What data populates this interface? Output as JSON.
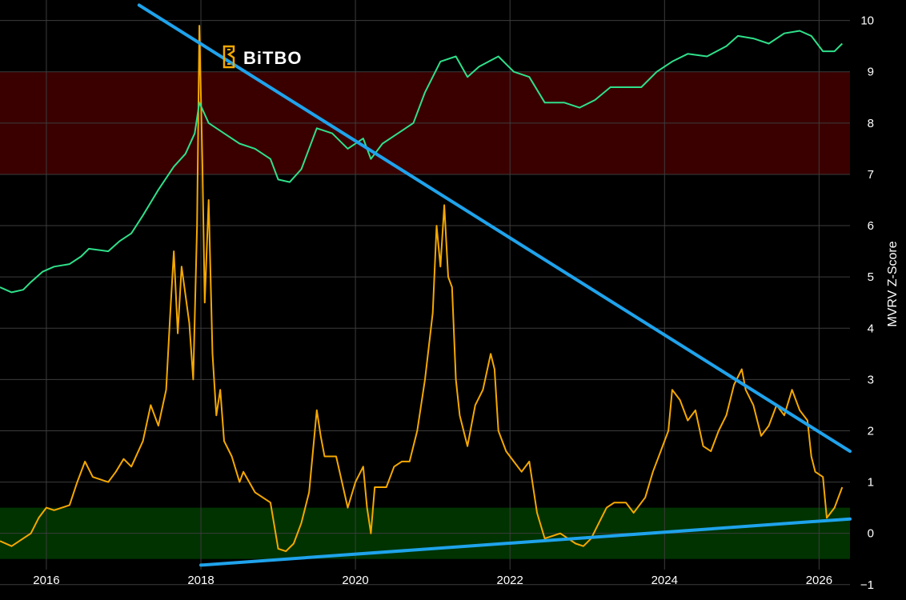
{
  "logo": {
    "text": "BiTBO"
  },
  "chart_data": {
    "type": "line",
    "title": "",
    "xlabel": "",
    "ylabel": "MVRV Z-Score",
    "xlim": [
      2015.4,
      2026.4
    ],
    "ylim": [
      -1.3,
      10.4
    ],
    "x_ticks": [
      2016,
      2018,
      2020,
      2022,
      2024,
      2026
    ],
    "x_tick_labels": [
      "2016",
      "2018",
      "2020",
      "2022",
      "2024",
      "2026"
    ],
    "y_ticks": [
      -1,
      0,
      1,
      2,
      3,
      4,
      5,
      6,
      7,
      8,
      9,
      10
    ],
    "y_tick_labels": [
      "−1",
      "0",
      "1",
      "2",
      "3",
      "4",
      "5",
      "6",
      "7",
      "8",
      "9",
      "10"
    ],
    "grid": true,
    "bands": [
      {
        "kind": "overvalued",
        "y_from": 7.0,
        "y_to": 9.0,
        "color": "#3a0000"
      },
      {
        "kind": "undervalued",
        "y_from": -0.5,
        "y_to": 0.5,
        "color": "#003300"
      }
    ],
    "trendlines": [
      {
        "kind": "resistance",
        "color": "#1fa3ec",
        "points": [
          [
            2017.2,
            10.3
          ],
          [
            2026.4,
            1.6
          ]
        ]
      },
      {
        "kind": "support",
        "color": "#1fa3ec",
        "points": [
          [
            2018.0,
            -0.62
          ],
          [
            2026.4,
            0.28
          ]
        ]
      }
    ],
    "series": [
      {
        "kind": "zscore",
        "color": "#f5a800",
        "color_low": "#c8d400",
        "points": [
          [
            2015.4,
            -0.15
          ],
          [
            2015.55,
            -0.25
          ],
          [
            2015.7,
            -0.1
          ],
          [
            2015.8,
            0.0
          ],
          [
            2015.9,
            0.3
          ],
          [
            2016.0,
            0.5
          ],
          [
            2016.1,
            0.45
          ],
          [
            2016.3,
            0.55
          ],
          [
            2016.4,
            1.0
          ],
          [
            2016.5,
            1.4
          ],
          [
            2016.6,
            1.1
          ],
          [
            2016.8,
            1.0
          ],
          [
            2016.9,
            1.2
          ],
          [
            2017.0,
            1.45
          ],
          [
            2017.1,
            1.3
          ],
          [
            2017.25,
            1.8
          ],
          [
            2017.35,
            2.5
          ],
          [
            2017.45,
            2.1
          ],
          [
            2017.55,
            2.8
          ],
          [
            2017.6,
            4.2
          ],
          [
            2017.65,
            5.5
          ],
          [
            2017.7,
            3.9
          ],
          [
            2017.75,
            5.2
          ],
          [
            2017.85,
            4.1
          ],
          [
            2017.9,
            3.0
          ],
          [
            2017.95,
            6.0
          ],
          [
            2017.98,
            9.9
          ],
          [
            2018.02,
            7.2
          ],
          [
            2018.05,
            4.5
          ],
          [
            2018.1,
            6.5
          ],
          [
            2018.15,
            3.5
          ],
          [
            2018.2,
            2.3
          ],
          [
            2018.25,
            2.8
          ],
          [
            2018.3,
            1.8
          ],
          [
            2018.4,
            1.5
          ],
          [
            2018.5,
            1.0
          ],
          [
            2018.55,
            1.2
          ],
          [
            2018.7,
            0.8
          ],
          [
            2018.9,
            0.6
          ],
          [
            2019.0,
            -0.3
          ],
          [
            2019.1,
            -0.35
          ],
          [
            2019.2,
            -0.2
          ],
          [
            2019.3,
            0.2
          ],
          [
            2019.4,
            0.8
          ],
          [
            2019.5,
            2.4
          ],
          [
            2019.55,
            1.9
          ],
          [
            2019.6,
            1.5
          ],
          [
            2019.75,
            1.5
          ],
          [
            2019.9,
            0.5
          ],
          [
            2020.0,
            1.0
          ],
          [
            2020.1,
            1.3
          ],
          [
            2020.15,
            0.5
          ],
          [
            2020.2,
            0.0
          ],
          [
            2020.25,
            0.9
          ],
          [
            2020.4,
            0.9
          ],
          [
            2020.5,
            1.3
          ],
          [
            2020.6,
            1.4
          ],
          [
            2020.7,
            1.4
          ],
          [
            2020.8,
            2.0
          ],
          [
            2020.9,
            3.0
          ],
          [
            2021.0,
            4.3
          ],
          [
            2021.05,
            6.0
          ],
          [
            2021.1,
            5.2
          ],
          [
            2021.15,
            6.4
          ],
          [
            2021.2,
            5.0
          ],
          [
            2021.25,
            4.8
          ],
          [
            2021.3,
            3.0
          ],
          [
            2021.35,
            2.3
          ],
          [
            2021.45,
            1.7
          ],
          [
            2021.55,
            2.5
          ],
          [
            2021.65,
            2.8
          ],
          [
            2021.75,
            3.5
          ],
          [
            2021.8,
            3.2
          ],
          [
            2021.85,
            2.0
          ],
          [
            2021.95,
            1.6
          ],
          [
            2022.05,
            1.4
          ],
          [
            2022.15,
            1.2
          ],
          [
            2022.25,
            1.4
          ],
          [
            2022.35,
            0.4
          ],
          [
            2022.45,
            -0.1
          ],
          [
            2022.55,
            -0.05
          ],
          [
            2022.65,
            0.0
          ],
          [
            2022.75,
            -0.1
          ],
          [
            2022.85,
            -0.2
          ],
          [
            2022.95,
            -0.25
          ],
          [
            2023.05,
            -0.1
          ],
          [
            2023.15,
            0.2
          ],
          [
            2023.25,
            0.5
          ],
          [
            2023.35,
            0.6
          ],
          [
            2023.5,
            0.6
          ],
          [
            2023.6,
            0.4
          ],
          [
            2023.75,
            0.7
          ],
          [
            2023.85,
            1.2
          ],
          [
            2023.95,
            1.6
          ],
          [
            2024.05,
            2.0
          ],
          [
            2024.1,
            2.8
          ],
          [
            2024.2,
            2.6
          ],
          [
            2024.3,
            2.2
          ],
          [
            2024.4,
            2.4
          ],
          [
            2024.5,
            1.7
          ],
          [
            2024.6,
            1.6
          ],
          [
            2024.7,
            2.0
          ],
          [
            2024.8,
            2.3
          ],
          [
            2024.9,
            2.9
          ],
          [
            2025.0,
            3.2
          ],
          [
            2025.05,
            2.8
          ],
          [
            2025.15,
            2.5
          ],
          [
            2025.25,
            1.9
          ],
          [
            2025.35,
            2.1
          ],
          [
            2025.45,
            2.5
          ],
          [
            2025.55,
            2.3
          ],
          [
            2025.65,
            2.8
          ],
          [
            2025.75,
            2.4
          ],
          [
            2025.85,
            2.2
          ],
          [
            2025.9,
            1.5
          ],
          [
            2025.95,
            1.2
          ],
          [
            2026.05,
            1.1
          ],
          [
            2026.1,
            0.3
          ],
          [
            2026.2,
            0.5
          ],
          [
            2026.3,
            0.9
          ]
        ]
      },
      {
        "kind": "price",
        "color": "#2fe08a",
        "color_alt": "#4caf50",
        "points": [
          [
            2015.4,
            4.8
          ],
          [
            2015.55,
            4.7
          ],
          [
            2015.7,
            4.75
          ],
          [
            2015.8,
            4.9
          ],
          [
            2015.95,
            5.1
          ],
          [
            2016.1,
            5.2
          ],
          [
            2016.3,
            5.25
          ],
          [
            2016.45,
            5.4
          ],
          [
            2016.55,
            5.55
          ],
          [
            2016.8,
            5.5
          ],
          [
            2016.95,
            5.7
          ],
          [
            2017.1,
            5.85
          ],
          [
            2017.25,
            6.2
          ],
          [
            2017.45,
            6.7
          ],
          [
            2017.65,
            7.15
          ],
          [
            2017.8,
            7.4
          ],
          [
            2017.92,
            7.8
          ],
          [
            2017.98,
            8.4
          ],
          [
            2018.1,
            8.0
          ],
          [
            2018.3,
            7.8
          ],
          [
            2018.5,
            7.6
          ],
          [
            2018.7,
            7.5
          ],
          [
            2018.9,
            7.3
          ],
          [
            2019.0,
            6.9
          ],
          [
            2019.15,
            6.85
          ],
          [
            2019.3,
            7.1
          ],
          [
            2019.5,
            7.9
          ],
          [
            2019.7,
            7.8
          ],
          [
            2019.9,
            7.5
          ],
          [
            2020.1,
            7.7
          ],
          [
            2020.2,
            7.3
          ],
          [
            2020.35,
            7.6
          ],
          [
            2020.55,
            7.8
          ],
          [
            2020.75,
            8.0
          ],
          [
            2020.9,
            8.6
          ],
          [
            2021.1,
            9.2
          ],
          [
            2021.3,
            9.3
          ],
          [
            2021.45,
            8.9
          ],
          [
            2021.6,
            9.1
          ],
          [
            2021.85,
            9.3
          ],
          [
            2022.05,
            9.0
          ],
          [
            2022.25,
            8.9
          ],
          [
            2022.45,
            8.4
          ],
          [
            2022.7,
            8.4
          ],
          [
            2022.9,
            8.3
          ],
          [
            2023.1,
            8.45
          ],
          [
            2023.3,
            8.7
          ],
          [
            2023.5,
            8.7
          ],
          [
            2023.7,
            8.7
          ],
          [
            2023.9,
            9.0
          ],
          [
            2024.1,
            9.2
          ],
          [
            2024.3,
            9.35
          ],
          [
            2024.55,
            9.3
          ],
          [
            2024.8,
            9.5
          ],
          [
            2024.95,
            9.7
          ],
          [
            2025.15,
            9.65
          ],
          [
            2025.35,
            9.55
          ],
          [
            2025.55,
            9.75
          ],
          [
            2025.75,
            9.8
          ],
          [
            2025.9,
            9.7
          ],
          [
            2026.05,
            9.4
          ],
          [
            2026.2,
            9.4
          ],
          [
            2026.3,
            9.55
          ]
        ]
      }
    ]
  }
}
